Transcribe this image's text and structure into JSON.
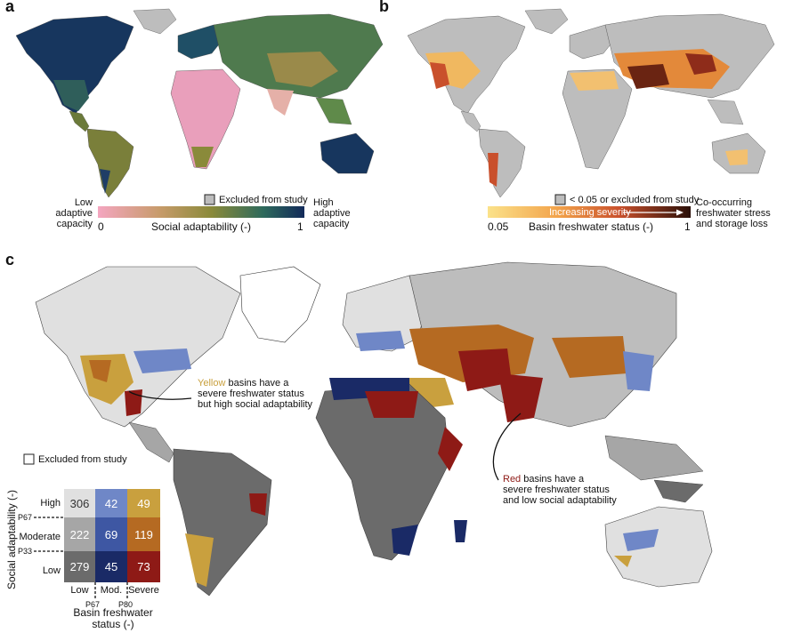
{
  "colors": {
    "ocean": "#ffffff",
    "excluded": "#bdbdbd",
    "high_low": "#e0e0e0",
    "high_mod": "#6f87c7",
    "high_sev": "#c9a03e",
    "mod_low": "#a6a6a6",
    "mod_mod": "#3e57a3",
    "mod_sev": "#b56a22",
    "low_low": "#6b6b6b",
    "low_mod": "#1a2a66",
    "low_sev": "#8e1a16"
  },
  "panel_a": {
    "letter": "a",
    "excluded_label": "Excluded from study",
    "low_label": "Low\nadaptive\ncapacity",
    "high_label": "High\nadaptive\ncapacity",
    "axis_min": "0",
    "axis_max": "1",
    "axis_title": "Social adaptability (-)"
  },
  "panel_b": {
    "letter": "b",
    "excluded_label": "< 0.05 or excluded from study",
    "arrow_label": "Increasing severity",
    "axis_min": "0.05",
    "axis_max": "1",
    "axis_title": "Basin freshwater status (-)",
    "right_label": "Co-occurring\nfreshwater stress\nand storage loss"
  },
  "panel_c": {
    "letter": "c",
    "excluded_label": "Excluded from study",
    "yellow_word": "Yellow",
    "yellow_text": " basins have a\nsevere freshwater status\nbut high social adaptability",
    "red_word": "Red",
    "red_text": " basins have a\nsevere freshwater status\nand low social adaptability",
    "y_axis_title": "Social adaptability (-)",
    "row_labels": [
      "High",
      "Moderate",
      "Low"
    ],
    "y_thresholds": [
      "P67",
      "P33"
    ],
    "col_labels": [
      "Low",
      "Mod.",
      "Severe"
    ],
    "x_thresholds": [
      "P67",
      "P80"
    ],
    "x_axis_title": "Basin freshwater\nstatus (-)",
    "matrix": [
      [
        "306",
        "42",
        "49"
      ],
      [
        "222",
        "69",
        "119"
      ],
      [
        "279",
        "45",
        "73"
      ]
    ]
  }
}
